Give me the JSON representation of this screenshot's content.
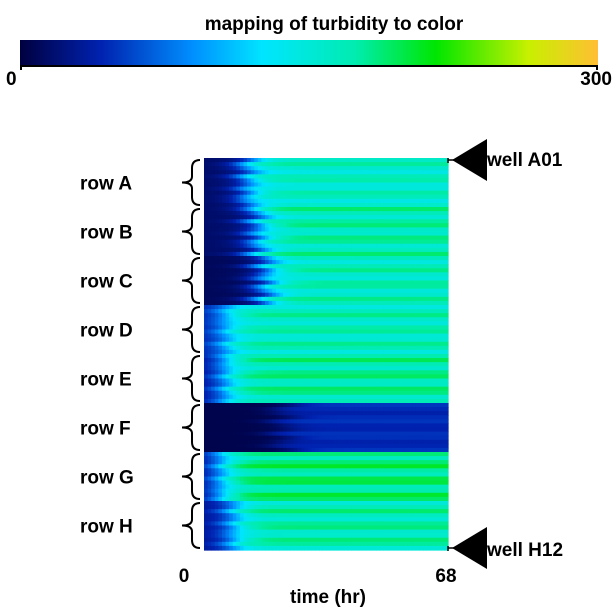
{
  "chart_data": {
    "type": "heatmap",
    "title": "mapping of turbidity to color",
    "colorbar": {
      "min_label": "0",
      "max_label": "300",
      "range": [
        0,
        300
      ]
    },
    "xlabel": "time (hr)",
    "x_ticks": [
      "0",
      "68"
    ],
    "xlim": [
      0,
      68
    ],
    "rows": [
      "row A",
      "row B",
      "row C",
      "row D",
      "row E",
      "row F",
      "row G",
      "row H"
    ],
    "annotations": [
      "well A01",
      "well H12"
    ],
    "colors": {
      "low": "#000040",
      "mid": "#00e5ff",
      "green": "#00e600",
      "high": "#ffbf33"
    },
    "row_profiles": [
      {
        "row": "row A",
        "start": 15,
        "plateau": 160,
        "midpoint_hr": 12
      },
      {
        "row": "row B",
        "start": 15,
        "plateau": 170,
        "midpoint_hr": 15
      },
      {
        "row": "row C",
        "start": 10,
        "plateau": 165,
        "midpoint_hr": 17
      },
      {
        "row": "row D",
        "start": 40,
        "plateau": 165,
        "midpoint_hr": 6
      },
      {
        "row": "row E",
        "start": 30,
        "plateau": 175,
        "midpoint_hr": 6
      },
      {
        "row": "row F",
        "start": 5,
        "plateau": 45,
        "midpoint_hr": 22
      },
      {
        "row": "row G",
        "start": 30,
        "plateau": 185,
        "midpoint_hr": 5
      },
      {
        "row": "row H",
        "start": 30,
        "plateau": 170,
        "midpoint_hr": 8
      }
    ]
  }
}
